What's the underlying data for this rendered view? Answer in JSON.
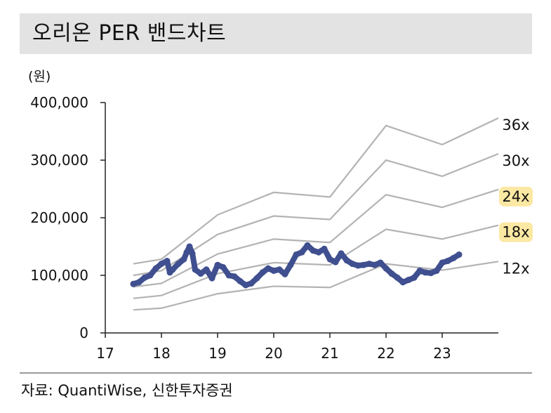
{
  "header": {
    "title": "오리온 PER 밴드차트"
  },
  "unit_label": "(원)",
  "source": "자료: QuantiWise, 신한투자증권",
  "colors": {
    "price": "#3f4f8f",
    "band": "#b3b3b3",
    "highlight": "#fbe8a3",
    "title_bg": "#e3e3e3"
  },
  "chart_data": {
    "type": "line",
    "title": "오리온 PER 밴드차트",
    "ylabel": "(원)",
    "xlabel": "",
    "xlim": [
      17,
      24
    ],
    "ylim": [
      0,
      400000
    ],
    "grid": false,
    "y_ticks": [
      0,
      100000,
      200000,
      300000,
      400000
    ],
    "y_tick_labels": [
      "0",
      "100,000",
      "200,000",
      "300,000",
      "400,000"
    ],
    "x_ticks": [
      17,
      18,
      19,
      20,
      21,
      22,
      23
    ],
    "x_tick_labels": [
      "17",
      "18",
      "19",
      "20",
      "21",
      "22",
      "23"
    ],
    "bands": [
      {
        "label": "36x",
        "highlight": false,
        "x": [
          17.5,
          18,
          19,
          20,
          21,
          22,
          23,
          24
        ],
        "values": [
          120000,
          128000,
          205000,
          244000,
          236000,
          360000,
          327000,
          373000
        ]
      },
      {
        "label": "30x",
        "highlight": false,
        "x": [
          17.5,
          18,
          19,
          20,
          21,
          22,
          23,
          24
        ],
        "values": [
          100000,
          108000,
          171000,
          203000,
          197000,
          300000,
          272000,
          311000
        ]
      },
      {
        "label": "24x",
        "highlight": true,
        "x": [
          17.5,
          18,
          19,
          20,
          21,
          22,
          23,
          24
        ],
        "values": [
          80000,
          86000,
          137000,
          163000,
          157000,
          240000,
          218000,
          249000
        ]
      },
      {
        "label": "18x",
        "highlight": true,
        "x": [
          17.5,
          18,
          19,
          20,
          21,
          22,
          23,
          24
        ],
        "values": [
          60000,
          65000,
          103000,
          122000,
          118000,
          180000,
          163000,
          187000
        ]
      },
      {
        "label": "12x",
        "highlight": false,
        "x": [
          17.5,
          18,
          19,
          20,
          21,
          22,
          23,
          24
        ],
        "values": [
          40000,
          43000,
          68000,
          81000,
          79000,
          120000,
          109000,
          124000
        ]
      }
    ],
    "price": {
      "x": [
        17.5,
        17.6,
        17.7,
        17.8,
        17.9,
        18.0,
        18.1,
        18.15,
        18.2,
        18.3,
        18.4,
        18.45,
        18.5,
        18.55,
        18.6,
        18.7,
        18.8,
        18.9,
        19.0,
        19.1,
        19.2,
        19.3,
        19.4,
        19.5,
        19.6,
        19.7,
        19.8,
        19.9,
        20.0,
        20.1,
        20.2,
        20.3,
        20.4,
        20.5,
        20.6,
        20.7,
        20.8,
        20.9,
        21.0,
        21.1,
        21.2,
        21.3,
        21.4,
        21.5,
        21.6,
        21.7,
        21.8,
        21.9,
        22.0,
        22.1,
        22.2,
        22.3,
        22.4,
        22.5,
        22.6,
        22.7,
        22.8,
        22.9,
        23.0,
        23.1,
        23.2,
        23.3
      ],
      "values": [
        85000,
        88000,
        96000,
        100000,
        112000,
        120000,
        125000,
        105000,
        110000,
        120000,
        128000,
        140000,
        150000,
        138000,
        110000,
        103000,
        110000,
        95000,
        118000,
        114000,
        100000,
        98000,
        90000,
        83000,
        86000,
        95000,
        105000,
        112000,
        108000,
        110000,
        102000,
        118000,
        136000,
        140000,
        152000,
        143000,
        140000,
        146000,
        128000,
        123000,
        138000,
        126000,
        120000,
        117000,
        118000,
        120000,
        118000,
        122000,
        112000,
        103000,
        96000,
        88000,
        92000,
        96000,
        108000,
        105000,
        104000,
        108000,
        122000,
        125000,
        130000,
        136000
      ]
    }
  }
}
